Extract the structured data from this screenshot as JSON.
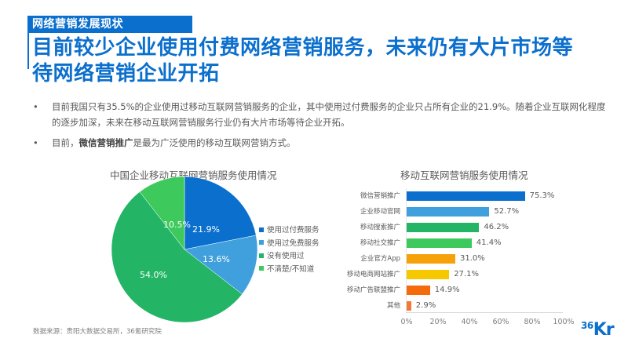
{
  "header": {
    "section_tag": "网络营销发展现状",
    "headline_line1": "目前较少企业使用付费网络营销服务，未来仍有大片市场等",
    "headline_line2": "待网络营销企业开拓"
  },
  "bullets": [
    {
      "marker": "•",
      "text": "目前我国只有35.5%的企业使用过移动互联网营销服务的企业，其中使用过付费服务的企业只占所有企业的21.9%。随着企业互联网化程度的逐步加深，未来在移动互联网营销服务行业仍有大片市场等待企业开拓。"
    },
    {
      "marker": "•",
      "prefix": "目前，",
      "bold": "微信营销推广",
      "suffix": "是最为广泛使用的移动互联网营销方式。"
    }
  ],
  "footer": {
    "source": "数据来源：贵阳大数据交易所，36氪研究院",
    "logo_num": "36",
    "logo_text": "Kr"
  },
  "colors": {
    "brand": "#0b6fcd",
    "pie": [
      "#0b6fcd",
      "#3fa0dd",
      "#23b565",
      "#3ec95c"
    ],
    "bars": [
      "#0b6fcd",
      "#3fa0dd",
      "#23b565",
      "#3ec95c",
      "#f7a10a",
      "#f5c800",
      "#f56a0a",
      "#f07a38"
    ]
  },
  "chart_data": [
    {
      "type": "pie",
      "title": "中国企业移动互联网营销服务使用情况",
      "categories": [
        "使用过付费服务",
        "使用过免费服务",
        "没有使用过",
        "不清楚/不知道"
      ],
      "values": [
        21.9,
        13.6,
        54.0,
        10.5
      ],
      "labels": [
        "21.9%",
        "13.6%",
        "54.0%",
        "10.5%"
      ],
      "unit": "%",
      "start_angle": "12 o'clock",
      "direction": "clockwise",
      "legend_position": "right"
    },
    {
      "type": "bar",
      "orientation": "horizontal",
      "title": "移动互联网营销服务使用情况",
      "categories": [
        "微信营销推广",
        "企业移动官网",
        "移动搜索推广",
        "移动社交推广",
        "企业官方App",
        "移动电商网站推广",
        "移动广告联盟推广",
        "其他"
      ],
      "values": [
        75.3,
        52.7,
        46.2,
        41.4,
        31.0,
        27.1,
        14.9,
        2.9
      ],
      "labels": [
        "75.3%",
        "52.7%",
        "46.2%",
        "41.4%",
        "31.0%",
        "27.1%",
        "14.9%",
        "2.9%"
      ],
      "xlim": [
        0,
        100
      ],
      "xticks": [
        "0%",
        "20%",
        "40%",
        "60%",
        "80%",
        "100%"
      ],
      "grid": false,
      "xlabel": "",
      "ylabel": ""
    }
  ]
}
